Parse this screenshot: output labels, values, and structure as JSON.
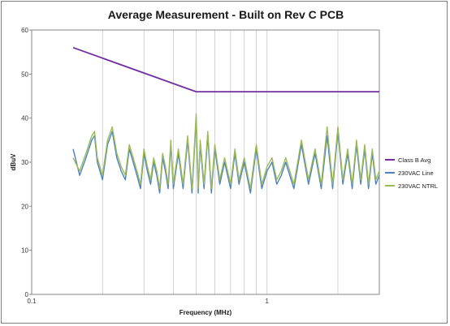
{
  "chart_data": {
    "type": "line",
    "title": "Average Measurement - Built on Rev C PCB",
    "xlabel": "Frequency (MHz)",
    "ylabel": "dBuV",
    "x_scale": "log",
    "xlim": [
      0.1,
      3.0
    ],
    "ylim": [
      0,
      60
    ],
    "x_ticks": [
      0.1,
      1
    ],
    "x_tick_labels": [
      "0.1",
      "1"
    ],
    "y_ticks": [
      0,
      10,
      20,
      30,
      40,
      50,
      60
    ],
    "y_tick_labels": [
      "0",
      "10",
      "20",
      "30",
      "40",
      "50",
      "60"
    ],
    "grid": "vertical",
    "legend_position": "right",
    "series": [
      {
        "name": "Class B Avg",
        "color": "#7030a0",
        "x": [
          0.15,
          0.5,
          3.0
        ],
        "values": [
          56,
          46,
          46
        ]
      },
      {
        "name": "230VAC Line",
        "color": "#4f81bd",
        "x": [
          0.15,
          0.16,
          0.17,
          0.18,
          0.185,
          0.19,
          0.2,
          0.21,
          0.22,
          0.23,
          0.24,
          0.25,
          0.26,
          0.27,
          0.28,
          0.29,
          0.3,
          0.31,
          0.32,
          0.33,
          0.34,
          0.35,
          0.36,
          0.37,
          0.38,
          0.39,
          0.4,
          0.42,
          0.44,
          0.46,
          0.48,
          0.5,
          0.51,
          0.52,
          0.54,
          0.56,
          0.58,
          0.6,
          0.63,
          0.66,
          0.7,
          0.73,
          0.76,
          0.8,
          0.85,
          0.9,
          0.95,
          1.0,
          1.05,
          1.1,
          1.15,
          1.2,
          1.3,
          1.4,
          1.5,
          1.6,
          1.7,
          1.8,
          1.9,
          2.0,
          2.1,
          2.2,
          2.3,
          2.4,
          2.5,
          2.6,
          2.7,
          2.8,
          2.9,
          3.0
        ],
        "values": [
          33,
          27,
          31,
          35,
          36,
          30,
          26,
          34,
          37,
          31,
          28,
          26,
          33,
          30,
          27,
          24,
          32,
          28,
          25,
          30,
          27,
          23,
          31,
          28,
          24,
          34,
          24,
          32,
          24,
          35,
          23,
          40,
          23,
          34,
          24,
          36,
          23,
          33,
          25,
          30,
          24,
          32,
          25,
          30,
          23,
          33,
          24,
          28,
          30,
          25,
          27,
          30,
          24,
          34,
          25,
          32,
          24,
          36,
          24,
          37,
          25,
          32,
          24,
          34,
          25,
          33,
          24,
          32,
          25,
          27
        ]
      },
      {
        "name": "230VAC NTRL",
        "color": "#9bbb59",
        "x": [
          0.15,
          0.16,
          0.17,
          0.18,
          0.185,
          0.19,
          0.2,
          0.21,
          0.22,
          0.23,
          0.24,
          0.25,
          0.26,
          0.27,
          0.28,
          0.29,
          0.3,
          0.31,
          0.32,
          0.33,
          0.34,
          0.35,
          0.36,
          0.37,
          0.38,
          0.39,
          0.4,
          0.42,
          0.44,
          0.46,
          0.48,
          0.5,
          0.51,
          0.52,
          0.54,
          0.56,
          0.58,
          0.6,
          0.63,
          0.66,
          0.7,
          0.73,
          0.76,
          0.8,
          0.85,
          0.9,
          0.95,
          1.0,
          1.05,
          1.1,
          1.15,
          1.2,
          1.3,
          1.4,
          1.5,
          1.6,
          1.7,
          1.8,
          1.9,
          2.0,
          2.1,
          2.2,
          2.3,
          2.4,
          2.5,
          2.6,
          2.7,
          2.8,
          2.9,
          3.0
        ],
        "values": [
          31,
          28,
          32,
          36,
          37,
          31,
          27,
          35,
          38,
          32,
          29,
          27,
          34,
          31,
          28,
          25,
          33,
          29,
          26,
          31,
          28,
          24,
          32,
          29,
          25,
          35,
          25,
          33,
          25,
          36,
          24,
          41,
          24,
          35,
          25,
          37,
          24,
          34,
          26,
          31,
          25,
          33,
          26,
          31,
          24,
          34,
          25,
          29,
          31,
          26,
          28,
          31,
          25,
          35,
          26,
          33,
          25,
          38,
          25,
          38,
          26,
          33,
          25,
          35,
          26,
          34,
          25,
          33,
          26,
          28
        ]
      }
    ]
  }
}
